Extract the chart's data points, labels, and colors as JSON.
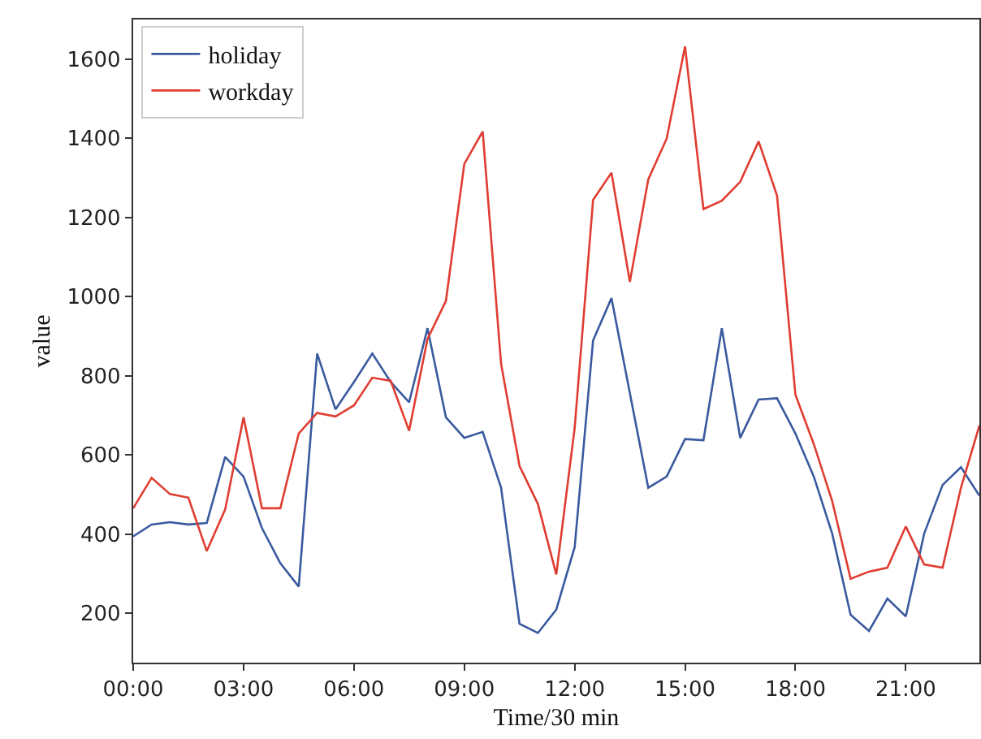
{
  "chart_data": {
    "type": "line",
    "xlabel": "Time/30 min",
    "ylabel": "value",
    "x": [
      0,
      0.5,
      1,
      1.5,
      2,
      2.5,
      3,
      3.5,
      4,
      4.5,
      5,
      5.5,
      6,
      6.5,
      7,
      7.5,
      8,
      8.5,
      9,
      9.5,
      10,
      10.5,
      11,
      11.5,
      12,
      12.5,
      13,
      13.5,
      14,
      14.5,
      15,
      15.5,
      16,
      16.5,
      17,
      17.5,
      18,
      18.5,
      19,
      19.5,
      20,
      20.5,
      21,
      21.5,
      22,
      22.5,
      23
    ],
    "series": [
      {
        "name": "holiday",
        "color": "#3a5a9f",
        "values": [
          394,
          424,
          430,
          424,
          428,
          595,
          545,
          415,
          326,
          267,
          856,
          715,
          784,
          856,
          784,
          733,
          920,
          695,
          643,
          658,
          517,
          173,
          150,
          209,
          367,
          889,
          996,
          756,
          517,
          545,
          640,
          637,
          920,
          643,
          740,
          743,
          654,
          545,
          401,
          196,
          155,
          237,
          192,
          401,
          524,
          569,
          497
        ]
      },
      {
        "name": "workday",
        "color": "#e03c31",
        "values": [
          465,
          542,
          501,
          492,
          357,
          462,
          695,
          465,
          465,
          654,
          706,
          697,
          725,
          795,
          787,
          661,
          893,
          989,
          1335,
          1417,
          830,
          572,
          476,
          298,
          668,
          1244,
          1313,
          1037,
          1296,
          1399,
          1632,
          1221,
          1242,
          1290,
          1392,
          1255,
          752,
          627,
          483,
          287,
          305,
          315,
          419,
          323,
          315,
          517,
          674
        ]
      }
    ],
    "xlim": [
      0,
      23
    ],
    "xticks": [
      {
        "value": 0,
        "label": "00:00"
      },
      {
        "value": 3,
        "label": "03:00"
      },
      {
        "value": 6,
        "label": "06:00"
      },
      {
        "value": 9,
        "label": "09:00"
      },
      {
        "value": 12,
        "label": "12:00"
      },
      {
        "value": 15,
        "label": "15:00"
      },
      {
        "value": 18,
        "label": "18:00"
      },
      {
        "value": 21,
        "label": "21:00"
      }
    ],
    "ylim": [
      75,
      1700
    ],
    "yticks": [
      200,
      400,
      600,
      800,
      1000,
      1200,
      1400,
      1600
    ],
    "legend": "top left",
    "marker": "none",
    "line_style": "solid"
  }
}
